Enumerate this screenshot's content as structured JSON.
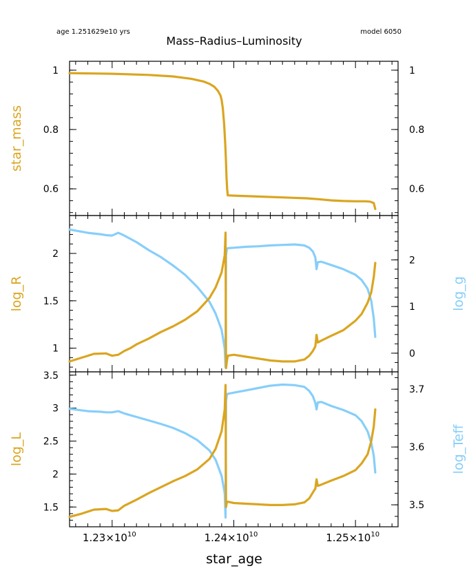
{
  "header": {
    "age_label": "age 1.251629e10 yrs",
    "title": "Mass–Radius–Luminosity",
    "model_label": "model 6050"
  },
  "colors": {
    "primary": "#daa520",
    "secondary": "#87cefa",
    "axis": "#000000"
  },
  "chart_data": [
    {
      "type": "line",
      "panel": "mass",
      "xlabel": "star_age",
      "xlim": [
        12265000000,
        12535000000
      ],
      "x_tick_labels": [
        "1.23×10",
        "1.24×10",
        "1.25×10"
      ],
      "x_tick_exponent": "10",
      "x_ticks": [
        12300000000,
        12400000000,
        12500000000
      ],
      "ylabel": "star_mass",
      "ylim": [
        0.51,
        1.03
      ],
      "y_ticks": [
        0.6,
        0.8,
        1.0
      ],
      "y_tick_labels": [
        "0.6",
        "0.8",
        "1"
      ],
      "y_right_tick_labels": [
        "0.6",
        "0.8",
        "1"
      ],
      "series": [
        {
          "axis": "left",
          "color": "#daa520",
          "x": [
            12265000000,
            12300000000,
            12330000000,
            12350000000,
            12365000000,
            12375000000,
            12380000000,
            12384000000,
            12387000000,
            12389000000,
            12390000000,
            12391000000,
            12392000000,
            12393000000,
            12393500000,
            12394000000,
            12394500000,
            12395000000,
            12400000000,
            12420000000,
            12440000000,
            12460000000,
            12470000000,
            12480000000,
            12490000000,
            12500000000,
            12508000000,
            12512000000,
            12515000000,
            12516290000
          ],
          "y": [
            0.99,
            0.988,
            0.984,
            0.979,
            0.971,
            0.962,
            0.954,
            0.944,
            0.93,
            0.915,
            0.9,
            0.87,
            0.82,
            0.75,
            0.7,
            0.64,
            0.6,
            0.578,
            0.577,
            0.574,
            0.571,
            0.568,
            0.565,
            0.561,
            0.559,
            0.558,
            0.558,
            0.557,
            0.552,
            0.532
          ]
        }
      ]
    },
    {
      "type": "line",
      "panel": "radius",
      "ylabel": "log_R",
      "ylim": [
        0.75,
        2.4
      ],
      "y_ticks": [
        1.0,
        1.5,
        2.0
      ],
      "y_tick_labels": [
        "1",
        "1.5",
        "2"
      ],
      "y2label": "log_g",
      "y2lim": [
        -0.4,
        2.95
      ],
      "y2_ticks": [
        0,
        1,
        2
      ],
      "y2_tick_labels": [
        "0",
        "1",
        "2"
      ],
      "series": [
        {
          "axis": "left",
          "color": "#daa520",
          "x": [
            12265000000,
            12275000000,
            12285000000,
            12295000000,
            12300000000,
            12305000000,
            12310000000,
            12315000000,
            12320000000,
            12330000000,
            12340000000,
            12350000000,
            12360000000,
            12370000000,
            12380000000,
            12385000000,
            12390000000,
            12392500000,
            12393200000,
            12393600000,
            12394300000,
            12395000000,
            12400000000,
            12410000000,
            12420000000,
            12430000000,
            12440000000,
            12450000000,
            12458000000,
            12462000000,
            12465000000,
            12467000000,
            12468000000,
            12469000000,
            12472000000,
            12480000000,
            12490000000,
            12500000000,
            12505000000,
            12510000000,
            12513000000,
            12515000000,
            12516290000
          ],
          "y": [
            0.86,
            0.9,
            0.94,
            0.945,
            0.92,
            0.93,
            0.97,
            1.0,
            1.04,
            1.1,
            1.17,
            1.23,
            1.3,
            1.39,
            1.53,
            1.64,
            1.8,
            1.98,
            2.22,
            0.79,
            0.86,
            0.92,
            0.93,
            0.91,
            0.89,
            0.87,
            0.86,
            0.86,
            0.88,
            0.92,
            0.97,
            1.02,
            1.14,
            1.06,
            1.08,
            1.13,
            1.19,
            1.29,
            1.36,
            1.48,
            1.59,
            1.75,
            1.9
          ]
        },
        {
          "axis": "right",
          "color": "#87cefa",
          "x": [
            12265000000,
            12280000000,
            12290000000,
            12295000000,
            12300000000,
            12305000000,
            12310000000,
            12320000000,
            12330000000,
            12340000000,
            12350000000,
            12360000000,
            12370000000,
            12380000000,
            12385000000,
            12390000000,
            12392500000,
            12393200000,
            12393600000,
            12394300000,
            12395000000,
            12400000000,
            12410000000,
            12420000000,
            12430000000,
            12440000000,
            12450000000,
            12458000000,
            12462000000,
            12465000000,
            12467000000,
            12468000000,
            12469000000,
            12472000000,
            12480000000,
            12490000000,
            12500000000,
            12505000000,
            12510000000,
            12513000000,
            12515000000,
            12516290000
          ],
          "y": [
            2.65,
            2.58,
            2.55,
            2.53,
            2.52,
            2.58,
            2.52,
            2.38,
            2.21,
            2.06,
            1.88,
            1.68,
            1.42,
            1.1,
            0.85,
            0.5,
            0.1,
            -0.3,
            2.1,
            2.23,
            2.25,
            2.26,
            2.28,
            2.29,
            2.31,
            2.32,
            2.33,
            2.31,
            2.26,
            2.18,
            2.05,
            1.8,
            1.95,
            1.96,
            1.89,
            1.8,
            1.68,
            1.57,
            1.38,
            1.12,
            0.75,
            0.35
          ]
        }
      ]
    },
    {
      "type": "line",
      "panel": "luminosity",
      "ylabel": "log_L",
      "ylim": [
        1.2,
        3.55
      ],
      "y_ticks": [
        1.5,
        2.0,
        2.5,
        3.0,
        3.5
      ],
      "y_tick_labels": [
        "1.5",
        "2",
        "2.5",
        "3",
        "3.5"
      ],
      "y2label": "log_Teff",
      "y2lim": [
        3.462,
        3.73
      ],
      "y2_ticks": [
        3.5,
        3.6,
        3.7
      ],
      "y2_tick_labels": [
        "3.5",
        "3.6",
        "3.7"
      ],
      "series": [
        {
          "axis": "left",
          "color": "#daa520",
          "x": [
            12265000000,
            12275000000,
            12285000000,
            12295000000,
            12300000000,
            12305000000,
            12310000000,
            12320000000,
            12330000000,
            12340000000,
            12350000000,
            12360000000,
            12370000000,
            12380000000,
            12385000000,
            12390000000,
            12392500000,
            12393200000,
            12393600000,
            12394300000,
            12395000000,
            12400000000,
            12410000000,
            12420000000,
            12430000000,
            12440000000,
            12450000000,
            12458000000,
            12462000000,
            12465000000,
            12467000000,
            12468000000,
            12469000000,
            12472000000,
            12480000000,
            12490000000,
            12500000000,
            12505000000,
            12510000000,
            12513000000,
            12515000000,
            12516290000
          ],
          "y": [
            1.35,
            1.4,
            1.46,
            1.47,
            1.44,
            1.45,
            1.52,
            1.61,
            1.71,
            1.8,
            1.89,
            1.97,
            2.07,
            2.23,
            2.38,
            2.65,
            2.98,
            3.35,
            1.5,
            1.57,
            1.58,
            1.56,
            1.55,
            1.54,
            1.53,
            1.53,
            1.54,
            1.57,
            1.63,
            1.72,
            1.78,
            1.92,
            1.82,
            1.84,
            1.9,
            1.97,
            2.06,
            2.16,
            2.3,
            2.5,
            2.72,
            2.98
          ]
        },
        {
          "axis": "right",
          "color": "#87cefa",
          "x": [
            12265000000,
            12280000000,
            12290000000,
            12295000000,
            12300000000,
            12305000000,
            12310000000,
            12320000000,
            12330000000,
            12340000000,
            12350000000,
            12360000000,
            12370000000,
            12380000000,
            12385000000,
            12390000000,
            12392500000,
            12393200000,
            12393600000,
            12394300000,
            12395000000,
            12400000000,
            12410000000,
            12420000000,
            12430000000,
            12440000000,
            12450000000,
            12458000000,
            12462000000,
            12465000000,
            12467000000,
            12468000000,
            12469000000,
            12472000000,
            12480000000,
            12490000000,
            12500000000,
            12505000000,
            12510000000,
            12513000000,
            12515000000,
            12516290000
          ],
          "y": [
            3.666,
            3.662,
            3.661,
            3.66,
            3.66,
            3.662,
            3.658,
            3.652,
            3.646,
            3.64,
            3.633,
            3.624,
            3.612,
            3.594,
            3.578,
            3.55,
            3.52,
            3.478,
            3.68,
            3.69,
            3.692,
            3.694,
            3.698,
            3.702,
            3.706,
            3.708,
            3.707,
            3.704,
            3.697,
            3.688,
            3.676,
            3.665,
            3.677,
            3.678,
            3.671,
            3.664,
            3.655,
            3.645,
            3.627,
            3.607,
            3.585,
            3.556
          ]
        }
      ]
    }
  ]
}
